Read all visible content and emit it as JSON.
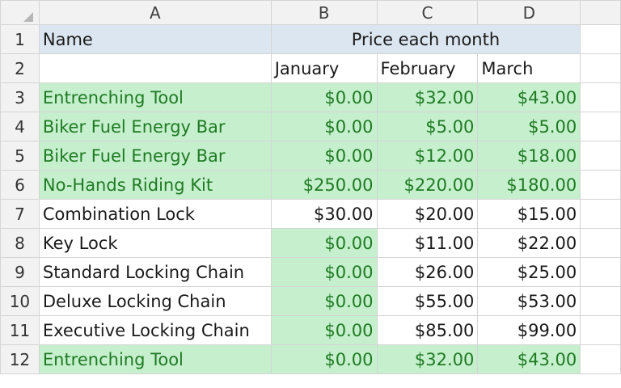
{
  "columns": [
    "A",
    "B",
    "C",
    "D"
  ],
  "header_row": {
    "row_num": "1",
    "name": "Name",
    "merged_title": "Price each month"
  },
  "month_row": {
    "row_num": "2",
    "months": [
      "January",
      "February",
      "March"
    ]
  },
  "rows": [
    {
      "row_num": "3",
      "name": "Entrenching Tool",
      "values": [
        "$0.00",
        "$32.00",
        "$43.00"
      ]
    },
    {
      "row_num": "4",
      "name": "Biker Fuel Energy Bar",
      "values": [
        "$0.00",
        "$5.00",
        "$5.00"
      ]
    },
    {
      "row_num": "5",
      "name": "Biker Fuel Energy Bar",
      "values": [
        "$0.00",
        "$12.00",
        "$18.00"
      ]
    },
    {
      "row_num": "6",
      "name": "No-Hands Riding Kit",
      "values": [
        "$250.00",
        "$220.00",
        "$180.00"
      ]
    },
    {
      "row_num": "7",
      "name": "Combination Lock",
      "values": [
        "$30.00",
        "$20.00",
        "$15.00"
      ]
    },
    {
      "row_num": "8",
      "name": "Key Lock",
      "values": [
        "$0.00",
        "$11.00",
        "$22.00"
      ]
    },
    {
      "row_num": "9",
      "name": "Standard Locking Chain",
      "values": [
        "$0.00",
        "$26.00",
        "$25.00"
      ]
    },
    {
      "row_num": "10",
      "name": "Deluxe Locking Chain",
      "values": [
        "$0.00",
        "$55.00",
        "$53.00"
      ]
    },
    {
      "row_num": "11",
      "name": "Executive Locking Chain",
      "values": [
        "$0.00",
        "$85.00",
        "$99.00"
      ]
    },
    {
      "row_num": "12",
      "name": "Entrenching Tool",
      "values": [
        "$0.00",
        "$32.00",
        "$43.00"
      ]
    }
  ],
  "colors": {
    "highlight_fill": "#c6efce",
    "highlight_text": "#1e7b22",
    "header_fill": "#dce6f1",
    "gridline": "#d4d4d4"
  }
}
